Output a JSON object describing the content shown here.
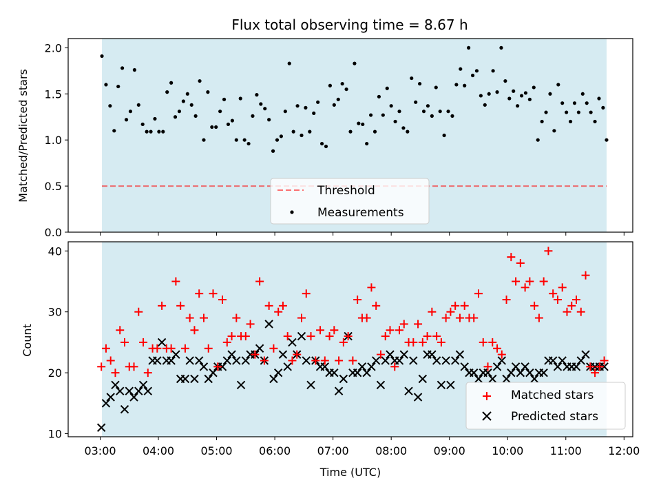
{
  "chart_data": {
    "title": "Flux total observing time = 8.67 h",
    "xlabel": "Time (UTC)",
    "x_range_hours": [
      2.45,
      12.15
    ],
    "x_ticks": [
      3,
      4,
      5,
      6,
      7,
      8,
      9,
      10,
      11,
      12
    ],
    "x_tick_labels": [
      "03:00",
      "04:00",
      "05:00",
      "06:00",
      "07:00",
      "08:00",
      "09:00",
      "10:00",
      "11:00",
      "12:00"
    ],
    "observing_window_hours": [
      3.03,
      11.7
    ],
    "colors": {
      "window": "#add8e6",
      "matched": "#ff0000",
      "predicted": "#000000",
      "threshold": "#ff0000",
      "measurements": "#000000"
    },
    "top": {
      "type": "scatter",
      "ylabel": "Matched/Predicted stars",
      "ylim": [
        0,
        2.1
      ],
      "y_ticks": [
        0.0,
        0.5,
        1.0,
        1.5,
        2.0
      ],
      "y_tick_labels": [
        "0.0",
        "0.5",
        "1.0",
        "1.5",
        "2.0"
      ],
      "threshold": 0.5,
      "legend": {
        "position": "lower-center",
        "threshold_label": "Threshold",
        "measurements_label": "Measurements"
      },
      "series": {
        "name": "Measurements",
        "x": [
          3.03,
          3.1,
          3.17,
          3.24,
          3.31,
          3.38,
          3.45,
          3.52,
          3.59,
          3.66,
          3.73,
          3.8,
          3.87,
          3.94,
          4.01,
          4.08,
          4.15,
          4.22,
          4.29,
          4.36,
          4.43,
          4.5,
          4.57,
          4.64,
          4.71,
          4.78,
          4.85,
          4.92,
          4.99,
          5.06,
          5.13,
          5.2,
          5.27,
          5.34,
          5.41,
          5.48,
          5.55,
          5.62,
          5.69,
          5.76,
          5.83,
          5.9,
          5.97,
          6.04,
          6.11,
          6.18,
          6.25,
          6.32,
          6.39,
          6.46,
          6.53,
          6.6,
          6.67,
          6.74,
          6.81,
          6.88,
          6.95,
          7.02,
          7.09,
          7.16,
          7.23,
          7.3,
          7.37,
          7.44,
          7.51,
          7.58,
          7.65,
          7.72,
          7.79,
          7.86,
          7.93,
          8.0,
          8.07,
          8.14,
          8.21,
          8.28,
          8.35,
          8.42,
          8.49,
          8.56,
          8.63,
          8.7,
          8.77,
          8.84,
          8.91,
          8.98,
          9.05,
          9.12,
          9.19,
          9.26,
          9.33,
          9.4,
          9.47,
          9.54,
          9.61,
          9.68,
          9.75,
          9.82,
          9.89,
          9.96,
          10.03,
          10.1,
          10.17,
          10.24,
          10.31,
          10.38,
          10.45,
          10.52,
          10.59,
          10.66,
          10.73,
          10.8,
          10.87,
          10.94,
          11.01,
          11.08,
          11.15,
          11.22,
          11.29,
          11.36,
          11.43,
          11.5,
          11.57,
          11.64,
          11.7
        ],
        "y": [
          1.91,
          1.6,
          1.37,
          1.1,
          1.58,
          1.78,
          1.22,
          1.31,
          1.76,
          1.38,
          1.17,
          1.09,
          1.09,
          1.23,
          1.09,
          1.09,
          1.52,
          1.62,
          1.25,
          1.31,
          1.42,
          1.5,
          1.38,
          1.26,
          1.64,
          1.0,
          1.52,
          1.14,
          1.14,
          1.31,
          1.44,
          1.17,
          1.21,
          1.0,
          1.45,
          1.0,
          0.96,
          1.26,
          1.49,
          1.39,
          1.34,
          1.22,
          0.88,
          1.0,
          1.04,
          1.31,
          1.83,
          1.09,
          1.37,
          1.05,
          1.35,
          1.09,
          1.29,
          1.41,
          0.96,
          0.93,
          1.59,
          1.38,
          1.44,
          1.61,
          1.55,
          1.09,
          1.83,
          1.18,
          1.17,
          0.96,
          1.27,
          1.09,
          1.47,
          1.27,
          1.56,
          1.37,
          1.2,
          1.31,
          1.13,
          1.09,
          1.67,
          1.41,
          1.61,
          1.31,
          1.37,
          1.26,
          1.57,
          1.31,
          1.05,
          1.31,
          1.26,
          1.6,
          1.77,
          1.59,
          2.0,
          1.7,
          1.75,
          1.48,
          1.38,
          1.5,
          1.75,
          1.52,
          2.0,
          1.64,
          1.45,
          1.53,
          1.37,
          1.48,
          1.51,
          1.44,
          1.57,
          1.0,
          1.2,
          1.3,
          1.5,
          1.1,
          1.6,
          1.4,
          1.3,
          1.2,
          1.4,
          1.3,
          1.5,
          1.4,
          1.3,
          1.2,
          1.45,
          1.35,
          1.0
        ]
      }
    },
    "bottom": {
      "type": "scatter",
      "ylabel": "Count",
      "ylim": [
        9.5,
        41.5
      ],
      "y_ticks": [
        10,
        20,
        30,
        40
      ],
      "y_tick_labels": [
        "10",
        "20",
        "30",
        "40"
      ],
      "legend": {
        "position": "lower-right",
        "matched_label": "Matched stars",
        "predicted_label": "Predicted stars"
      },
      "series": [
        {
          "name": "Matched stars",
          "marker": "+",
          "x": [
            3.02,
            3.1,
            3.18,
            3.26,
            3.34,
            3.42,
            3.5,
            3.58,
            3.66,
            3.74,
            3.82,
            3.9,
            3.98,
            4.06,
            4.14,
            4.22,
            4.3,
            4.38,
            4.46,
            4.54,
            4.62,
            4.7,
            4.78,
            4.86,
            4.94,
            5.02,
            5.1,
            5.18,
            5.26,
            5.34,
            5.42,
            5.5,
            5.58,
            5.66,
            5.74,
            5.82,
            5.9,
            5.98,
            6.06,
            6.14,
            6.22,
            6.3,
            6.38,
            6.46,
            6.54,
            6.62,
            6.7,
            6.78,
            6.86,
            6.94,
            7.02,
            7.1,
            7.18,
            7.26,
            7.34,
            7.42,
            7.5,
            7.58,
            7.66,
            7.74,
            7.82,
            7.9,
            7.98,
            8.06,
            8.14,
            8.22,
            8.3,
            8.38,
            8.46,
            8.54,
            8.62,
            8.7,
            8.78,
            8.86,
            8.94,
            9.02,
            9.1,
            9.18,
            9.26,
            9.34,
            9.42,
            9.5,
            9.58,
            9.66,
            9.74,
            9.82,
            9.9,
            9.98,
            10.06,
            10.14,
            10.22,
            10.3,
            10.38,
            10.46,
            10.54,
            10.62,
            10.7,
            10.78,
            10.86,
            10.94,
            11.02,
            11.1,
            11.18,
            11.26,
            11.34,
            11.42,
            11.5,
            11.58,
            11.66
          ],
          "y": [
            21,
            24,
            22,
            20,
            27,
            25,
            21,
            21,
            30,
            25,
            20,
            24,
            24,
            31,
            24,
            24,
            35,
            31,
            24,
            29,
            27,
            33,
            29,
            24,
            33,
            21,
            32,
            25,
            26,
            29,
            26,
            26,
            28,
            23,
            35,
            22,
            31,
            24,
            30,
            31,
            26,
            22,
            23,
            29,
            33,
            26,
            22,
            27,
            22,
            26,
            27,
            22,
            25,
            26,
            22,
            32,
            29,
            29,
            34,
            31,
            23,
            26,
            27,
            21,
            27,
            28,
            25,
            25,
            28,
            25,
            26,
            30,
            26,
            25,
            29,
            30,
            31,
            29,
            31,
            29,
            29,
            33,
            25,
            21,
            25,
            24,
            23,
            32,
            39,
            35,
            38,
            34,
            35,
            31,
            29,
            35,
            40,
            33,
            32,
            34,
            30,
            31,
            32,
            30,
            36,
            21,
            20,
            21,
            22
          ]
        },
        {
          "name": "Predicted stars",
          "marker": "x",
          "x": [
            3.02,
            3.1,
            3.18,
            3.26,
            3.34,
            3.42,
            3.5,
            3.58,
            3.66,
            3.74,
            3.82,
            3.9,
            3.98,
            4.06,
            4.14,
            4.22,
            4.3,
            4.38,
            4.46,
            4.54,
            4.62,
            4.7,
            4.78,
            4.86,
            4.94,
            5.02,
            5.1,
            5.18,
            5.26,
            5.34,
            5.42,
            5.5,
            5.58,
            5.66,
            5.74,
            5.82,
            5.9,
            5.98,
            6.06,
            6.14,
            6.22,
            6.3,
            6.38,
            6.46,
            6.54,
            6.62,
            6.7,
            6.78,
            6.86,
            6.94,
            7.02,
            7.1,
            7.18,
            7.26,
            7.34,
            7.42,
            7.5,
            7.58,
            7.66,
            7.74,
            7.82,
            7.9,
            7.98,
            8.06,
            8.14,
            8.22,
            8.3,
            8.38,
            8.46,
            8.54,
            8.62,
            8.7,
            8.78,
            8.86,
            8.94,
            9.02,
            9.1,
            9.18,
            9.26,
            9.34,
            9.42,
            9.5,
            9.58,
            9.66,
            9.74,
            9.82,
            9.9,
            9.98,
            10.06,
            10.14,
            10.22,
            10.3,
            10.38,
            10.46,
            10.54,
            10.62,
            10.7,
            10.78,
            10.86,
            10.94,
            11.02,
            11.1,
            11.18,
            11.26,
            11.34,
            11.42,
            11.5,
            11.58,
            11.66
          ],
          "y": [
            11,
            15,
            16,
            18,
            17,
            14,
            17,
            16,
            17,
            18,
            17,
            22,
            22,
            25,
            22,
            22,
            23,
            19,
            19,
            22,
            19,
            22,
            21,
            19,
            20,
            21,
            21,
            22,
            23,
            22,
            18,
            22,
            23,
            23,
            24,
            22,
            28,
            19,
            20,
            23,
            21,
            25,
            23,
            26,
            22,
            18,
            22,
            21,
            21,
            20,
            20,
            17,
            19,
            26,
            20,
            20,
            21,
            20,
            21,
            22,
            18,
            22,
            23,
            22,
            22,
            23,
            17,
            22,
            16,
            19,
            23,
            23,
            22,
            18,
            22,
            18,
            22,
            23,
            21,
            20,
            20,
            19,
            20,
            20,
            19,
            21,
            22,
            19,
            20,
            21,
            20,
            21,
            20,
            19,
            20,
            20,
            22,
            22,
            21,
            22,
            21,
            21,
            21,
            22,
            23,
            21,
            21,
            21,
            21
          ]
        }
      ]
    }
  }
}
